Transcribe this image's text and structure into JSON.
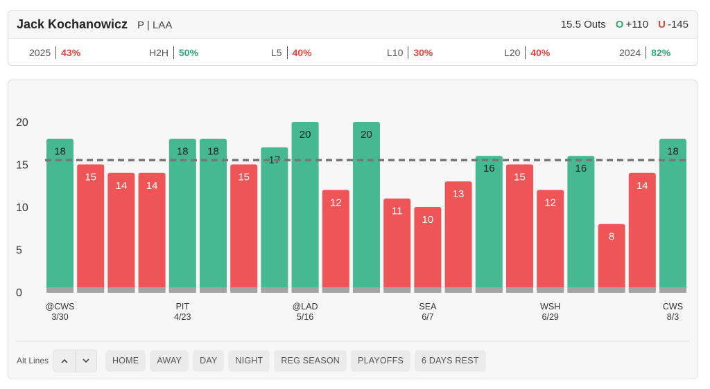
{
  "player": {
    "name": "Jack Kochanowicz",
    "meta": "P | LAA"
  },
  "line": {
    "prop": "15.5 Outs",
    "over_label": "O",
    "over_odds": "+110",
    "under_label": "U",
    "under_odds": "-145"
  },
  "stats": [
    {
      "label": "2025",
      "value": "43%",
      "color": "#e0453f"
    },
    {
      "label": "H2H",
      "value": "50%",
      "color": "#2eaa74"
    },
    {
      "label": "L5",
      "value": "40%",
      "color": "#e0453f"
    },
    {
      "label": "L10",
      "value": "30%",
      "color": "#e0453f"
    },
    {
      "label": "L20",
      "value": "40%",
      "color": "#e0453f"
    },
    {
      "label": "2024",
      "value": "82%",
      "color": "#2eaa74"
    }
  ],
  "colors": {
    "over": "#46b992",
    "under": "#ef5556",
    "base": "#a3a3a3",
    "line": "#777777"
  },
  "chart_data": {
    "type": "bar",
    "y_ticks": [
      0,
      5,
      10,
      15,
      20
    ],
    "ylim": [
      0,
      20
    ],
    "threshold": 15.5,
    "values": [
      18,
      15,
      14,
      14,
      18,
      18,
      15,
      17,
      20,
      12,
      20,
      11,
      10,
      13,
      16,
      15,
      12,
      16,
      8,
      14,
      18
    ],
    "x_labels": [
      {
        "index": 0,
        "opp": "@CWS",
        "date": "3/30"
      },
      {
        "index": 4,
        "opp": "PIT",
        "date": "4/23"
      },
      {
        "index": 8,
        "opp": "@LAD",
        "date": "5/16"
      },
      {
        "index": 12,
        "opp": "SEA",
        "date": "6/7"
      },
      {
        "index": 16,
        "opp": "WSH",
        "date": "6/29"
      },
      {
        "index": 20,
        "opp": "CWS",
        "date": "8/3"
      }
    ]
  },
  "controls": {
    "alt_lines_label": "Alt Lines",
    "up_icon": "chevron-up-icon",
    "down_icon": "chevron-down-icon",
    "filters": [
      "HOME",
      "AWAY",
      "DAY",
      "NIGHT",
      "REG SEASON",
      "PLAYOFFS",
      "6 DAYS REST"
    ]
  }
}
